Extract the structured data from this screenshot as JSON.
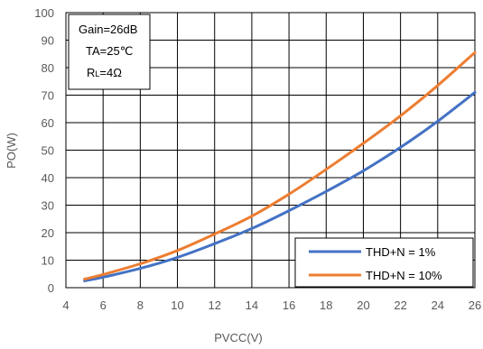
{
  "chart_data": {
    "type": "line",
    "xlabel": "PVCC(V)",
    "ylabel": "PO(W)",
    "xlim": [
      4,
      26
    ],
    "ylim": [
      0,
      100
    ],
    "x_ticks": [
      4,
      6,
      8,
      10,
      12,
      14,
      16,
      18,
      20,
      22,
      24,
      26
    ],
    "y_ticks": [
      0,
      10,
      20,
      30,
      40,
      50,
      60,
      70,
      80,
      90,
      100
    ],
    "grid": true,
    "legend_position": "bottom-right",
    "conditions": {
      "gain": "Gain=26dB",
      "ta": "TA=25℃",
      "rl_prefix": "R",
      "rl_sub": "L",
      "rl_suffix": "=4Ω"
    },
    "series": [
      {
        "name": "THD+N = 1%",
        "color": "#4472c4",
        "x": [
          5,
          6,
          8,
          10,
          12,
          14,
          16,
          18,
          20,
          22,
          24,
          26
        ],
        "y": [
          2.5,
          3.8,
          7,
          11,
          16,
          21.5,
          28,
          35,
          42.5,
          51,
          60.5,
          71
        ]
      },
      {
        "name": "THD+N = 10%",
        "color": "#ed7d31",
        "x": [
          5,
          6,
          8,
          10,
          12,
          14,
          16,
          18,
          20,
          22,
          24,
          26
        ],
        "y": [
          3.1,
          4.8,
          8.7,
          13.5,
          19.5,
          26,
          34,
          43,
          52.5,
          62.5,
          73.5,
          85.5
        ]
      }
    ]
  }
}
